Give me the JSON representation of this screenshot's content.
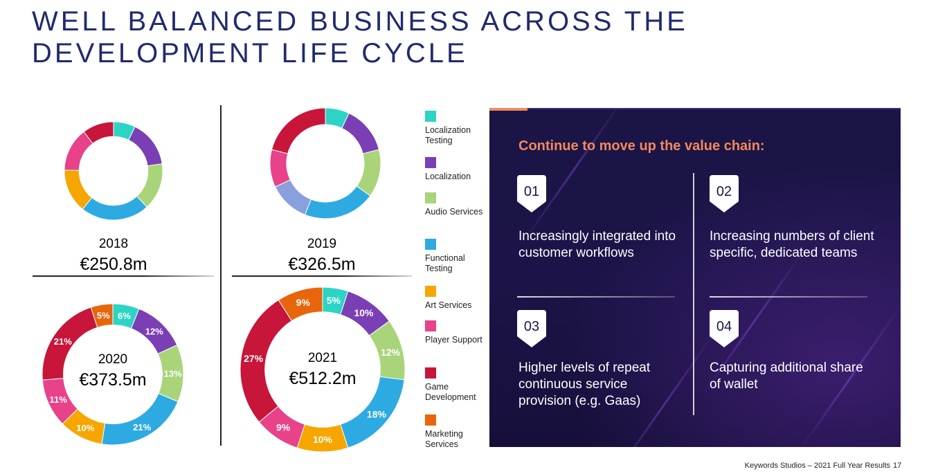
{
  "title": {
    "line1": "WELL BALANCED BUSINESS ACROSS THE",
    "line2": "DEVELOPMENT LIFE CYCLE"
  },
  "colors": {
    "localization_testing": "#2dd4c4",
    "localization": "#7b3fb5",
    "audio_services": "#a9d47a",
    "functional_testing": "#2eaae2",
    "art_services": "#f7a600",
    "player_support": "#e8428a",
    "game_development": "#c8153a",
    "marketing_services": "#e8650c",
    "extra_lavender": "#8aa0dd",
    "title": "#1f2a6e",
    "panel_heading": "#f2885a"
  },
  "legend": [
    {
      "label": "Localization Testing",
      "color": "#2dd4c4"
    },
    {
      "label": "Localization",
      "color": "#7b3fb5"
    },
    {
      "label": "Audio Services",
      "color": "#a9d47a"
    },
    {
      "label": "Functional Testing",
      "color": "#2eaae2"
    },
    {
      "label": "Art Services",
      "color": "#f7a600"
    },
    {
      "label": "Player Support",
      "color": "#e8428a"
    },
    {
      "label": "Game Development",
      "color": "#c8153a"
    },
    {
      "label": "Marketing Services",
      "color": "#e8650c"
    }
  ],
  "chart_data": [
    {
      "type": "pie",
      "year": "2018",
      "total": "€250.8m",
      "series": [
        {
          "name": "Localization Testing",
          "value": 7,
          "color": "#2dd4c4"
        },
        {
          "name": "Localization",
          "value": 15,
          "color": "#7b3fb5"
        },
        {
          "name": "Audio Services",
          "value": 15,
          "color": "#a9d47a"
        },
        {
          "name": "Functional Testing",
          "value": 22,
          "color": "#2eaae2"
        },
        {
          "name": "Art Services",
          "value": 14,
          "color": "#f7a600"
        },
        {
          "name": "Player Support",
          "value": 14,
          "color": "#e8428a"
        },
        {
          "name": "Game Development",
          "value": 10,
          "color": "#c8153a"
        }
      ]
    },
    {
      "type": "pie",
      "year": "2019",
      "total": "€326.5m",
      "series": [
        {
          "name": "Localization Testing",
          "value": 7,
          "color": "#2dd4c4"
        },
        {
          "name": "Localization",
          "value": 14,
          "color": "#7b3fb5"
        },
        {
          "name": "Audio Services",
          "value": 14,
          "color": "#a9d47a"
        },
        {
          "name": "Functional Testing",
          "value": 21,
          "color": "#2eaae2"
        },
        {
          "name": "",
          "value": 12,
          "color": "#8aa0dd"
        },
        {
          "name": "Player Support",
          "value": 11,
          "color": "#e8428a"
        },
        {
          "name": "Game Development",
          "value": 21,
          "color": "#c8153a"
        }
      ]
    },
    {
      "type": "pie",
      "year": "2020",
      "total": "€373.5m",
      "series": [
        {
          "name": "Localization Testing",
          "value": 6,
          "label": "6%",
          "color": "#2dd4c4"
        },
        {
          "name": "Localization",
          "value": 12,
          "label": "12%",
          "color": "#7b3fb5"
        },
        {
          "name": "Audio Services",
          "value": 13,
          "label": "13%",
          "color": "#a9d47a"
        },
        {
          "name": "Functional Testing",
          "value": 21,
          "label": "21%",
          "color": "#2eaae2"
        },
        {
          "name": "Art Services",
          "value": 10,
          "label": "10%",
          "color": "#f7a600"
        },
        {
          "name": "Player Support",
          "value": 11,
          "label": "11%",
          "color": "#e8428a"
        },
        {
          "name": "Game Development",
          "value": 21,
          "label": "21%",
          "color": "#c8153a"
        },
        {
          "name": "Marketing Services",
          "value": 5,
          "label": "5%",
          "color": "#e8650c"
        }
      ]
    },
    {
      "type": "pie",
      "year": "2021",
      "total": "€512.2m",
      "series": [
        {
          "name": "Localization Testing",
          "value": 5,
          "label": "5%",
          "color": "#2dd4c4"
        },
        {
          "name": "Localization",
          "value": 10,
          "label": "10%",
          "color": "#7b3fb5"
        },
        {
          "name": "Audio Services",
          "value": 12,
          "label": "12%",
          "color": "#a9d47a"
        },
        {
          "name": "Functional Testing",
          "value": 18,
          "label": "18%",
          "color": "#2eaae2"
        },
        {
          "name": "Art Services",
          "value": 10,
          "label": "10%",
          "color": "#f7a600"
        },
        {
          "name": "Player Support",
          "value": 9,
          "label": "9%",
          "color": "#e8428a"
        },
        {
          "name": "Game Development",
          "value": 27,
          "label": "27%",
          "color": "#c8153a"
        },
        {
          "name": "Marketing Services",
          "value": 9,
          "label": "9%",
          "color": "#e8650c"
        }
      ]
    }
  ],
  "panel": {
    "heading": "Continue to move up the value chain:",
    "items": [
      {
        "number": "01",
        "text": "Increasingly integrated into customer workflows"
      },
      {
        "number": "02",
        "text": "Increasing numbers of client specific, dedicated teams"
      },
      {
        "number": "03",
        "text": "Higher levels of repeat continuous service provision (e.g. Gaas)"
      },
      {
        "number": "04",
        "text": "Capturing additional share of wallet"
      }
    ]
  },
  "footer": {
    "text": "Keywords Studios – 2021 Full Year Results",
    "page": "17"
  }
}
